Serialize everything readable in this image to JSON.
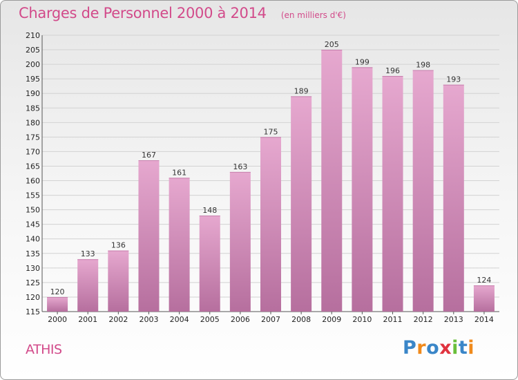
{
  "header": {
    "title": "Charges de Personnel 2000 à 2014",
    "subtitle": "(en milliers d'€)"
  },
  "footer": {
    "city": "ATHIS",
    "logo_text": "Proxiti"
  },
  "colors": {
    "accent": "#d24a8a",
    "bar_top": "#e6a8cf",
    "bar_bottom": "#b66f9e",
    "grid": "#d2d2d2",
    "logo_letters": [
      "#3a86c8",
      "#f08a1c",
      "#3a86c8",
      "#e0333f",
      "#6abf3b",
      "#3a86c8",
      "#f08a1c"
    ]
  },
  "chart_data": {
    "type": "bar",
    "title": "Charges de Personnel 2000 à 2014",
    "subtitle": "(en milliers d'€)",
    "categories": [
      "2000",
      "2001",
      "2002",
      "2003",
      "2004",
      "2005",
      "2006",
      "2007",
      "2008",
      "2009",
      "2010",
      "2011",
      "2012",
      "2013",
      "2014"
    ],
    "values": [
      120,
      133,
      136,
      167,
      161,
      148,
      163,
      175,
      189,
      205,
      199,
      196,
      198,
      193,
      124
    ],
    "ylim": [
      115,
      210
    ],
    "yticks": [
      115,
      120,
      125,
      130,
      135,
      140,
      145,
      150,
      155,
      160,
      165,
      170,
      175,
      180,
      185,
      190,
      195,
      200,
      205,
      210
    ],
    "grid": true,
    "data_labels": true
  }
}
